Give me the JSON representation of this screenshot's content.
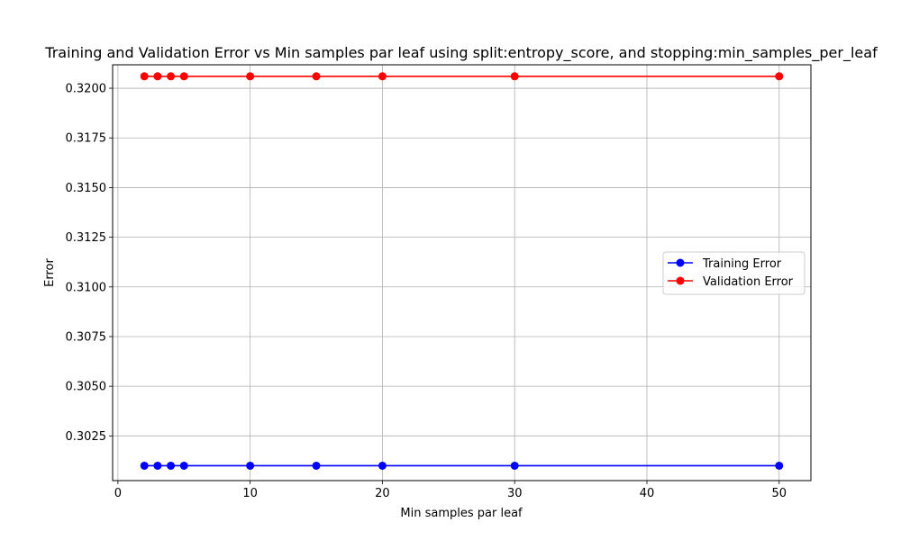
{
  "chart_data": {
    "type": "line",
    "title": "Training and Validation Error vs Min samples par leaf using split:entropy_score, and stopping:min_samples_per_leaf",
    "xlabel": "Min samples par leaf",
    "ylabel": "Error",
    "x": [
      2,
      3,
      4,
      5,
      10,
      15,
      20,
      30,
      50
    ],
    "xlim": [
      -0.4,
      52.4
    ],
    "ylim": [
      0.30025,
      0.32118
    ],
    "xticks": [
      0,
      10,
      20,
      30,
      40,
      50
    ],
    "xtick_labels": [
      "0",
      "10",
      "20",
      "30",
      "40",
      "50"
    ],
    "yticks": [
      0.3025,
      0.305,
      0.3075,
      0.31,
      0.3125,
      0.315,
      0.3175,
      0.32
    ],
    "ytick_labels": [
      "0.3025",
      "0.3050",
      "0.3075",
      "0.3100",
      "0.3125",
      "0.3150",
      "0.3175",
      "0.3200"
    ],
    "grid": true,
    "legend_position": "center-right",
    "series": [
      {
        "name": "Training Error",
        "color": "#0000ff",
        "marker": "circle",
        "values": [
          0.301,
          0.301,
          0.301,
          0.301,
          0.301,
          0.301,
          0.301,
          0.301,
          0.301
        ]
      },
      {
        "name": "Validation Error",
        "color": "#ff0000",
        "marker": "circle",
        "values": [
          0.3206,
          0.3206,
          0.3206,
          0.3206,
          0.3206,
          0.3206,
          0.3206,
          0.3206,
          0.3206
        ]
      }
    ]
  }
}
